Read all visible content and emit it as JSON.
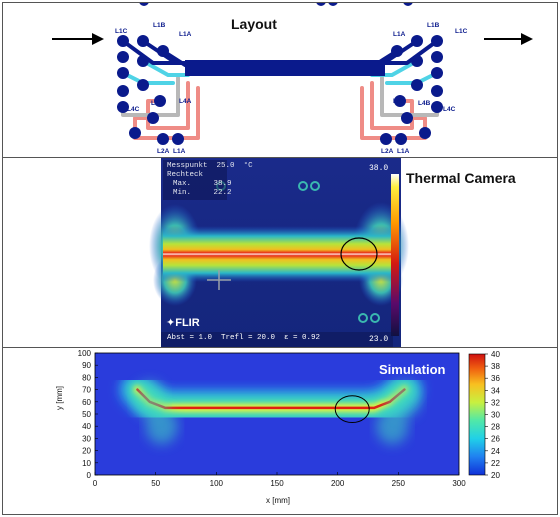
{
  "layout": {
    "title": "Layout",
    "pad_labels": {
      "l1c_left": "L1C",
      "l1b_left": "L1B",
      "l1a_left": "L1A",
      "l4c_left": "L4C",
      "l4b_left": "L4B",
      "l4a_left": "L4A",
      "l2a_left": "L2A",
      "l1a_bottom_left": "L1A",
      "l1a_right": "L1A",
      "l1b_right": "L1B",
      "l1c_right": "L1C",
      "l4a_right": "L4A",
      "l4b_right": "L4B",
      "l4c_right": "L4C",
      "l2a_right": "L2A",
      "l1a_bottom_right": "L1A"
    },
    "colors": {
      "trace_navy": "#0a1a8c",
      "trace_cyan": "#4fd3e6",
      "trace_salmon": "#ef8c86",
      "trace_grey": "#b8b8b8"
    }
  },
  "thermal": {
    "title": "Thermal Camera",
    "overlay": {
      "messpunkt_label": "Messpunkt",
      "messpunkt_value": "25.0",
      "unit": "°C",
      "rechteck_label": "Rechteck",
      "max_label": "Max.",
      "max_value": "38.9",
      "min_label": "Min.",
      "min_value": "22.2"
    },
    "scale_top": "38.0",
    "scale_bottom": "23.0",
    "logo": "FLIR",
    "footer": "Abst = 1.0  Trefl = 20.0  ε = 0.92"
  },
  "simulation": {
    "title": "Simulation",
    "xlabel": "x [mm]",
    "ylabel": "y [mm]",
    "x_ticks": [
      "0",
      "50",
      "100",
      "150",
      "200",
      "250",
      "300"
    ],
    "y_ticks": [
      "0",
      "10",
      "20",
      "30",
      "40",
      "50",
      "60",
      "70",
      "80",
      "90",
      "100"
    ],
    "colorbar_ticks": [
      "20",
      "22",
      "24",
      "26",
      "28",
      "30",
      "32",
      "34",
      "36",
      "38",
      "40"
    ]
  },
  "chart_data": {
    "type": "heatmap",
    "title": "Simulation",
    "xlabel": "x [mm]",
    "ylabel": "y [mm]",
    "xlim": [
      0,
      300
    ],
    "ylim": [
      0,
      100
    ],
    "colorbar_range": [
      20,
      40
    ],
    "hot_trace": {
      "path": [
        [
          35,
          70
        ],
        [
          45,
          60
        ],
        [
          58,
          55
        ],
        [
          230,
          55
        ],
        [
          243,
          60
        ],
        [
          255,
          70
        ]
      ],
      "peak_value": 40,
      "background_value": 20
    },
    "marked_region": {
      "cx": 212,
      "cy": 54,
      "rx": 14,
      "ry": 11
    }
  }
}
